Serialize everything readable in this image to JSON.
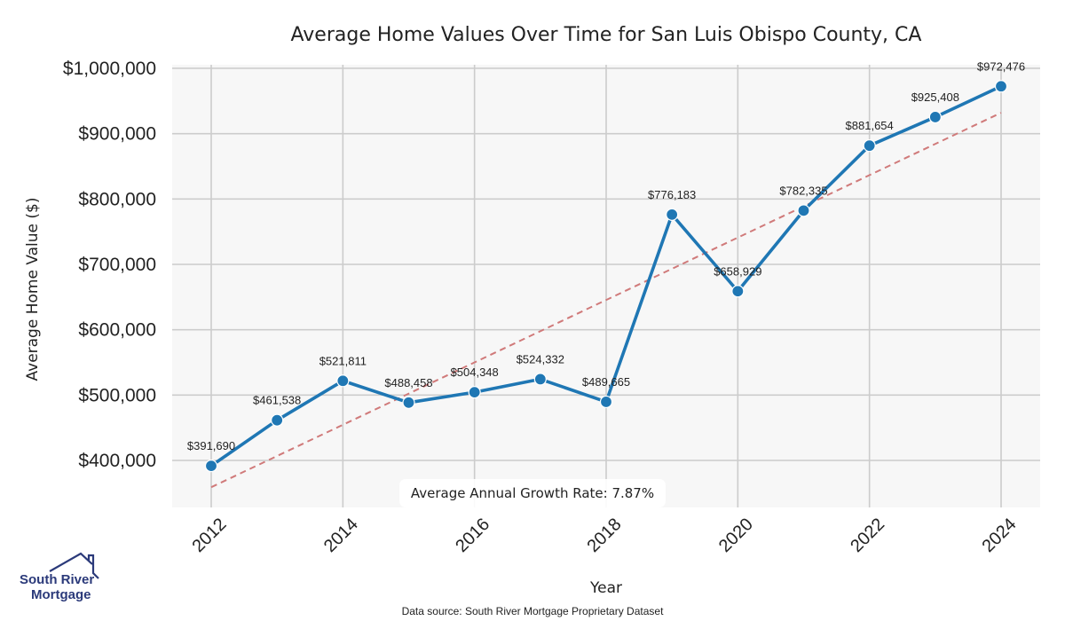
{
  "chart_data": {
    "type": "line",
    "title": "Average Home Values Over Time for San Luis Obispo County, CA",
    "xlabel": "Year",
    "ylabel": "Average Home Value ($)",
    "x": [
      2012,
      2013,
      2014,
      2015,
      2016,
      2017,
      2018,
      2019,
      2020,
      2021,
      2022,
      2023,
      2024
    ],
    "series": [
      {
        "name": "Average Home Value",
        "values": [
          391690,
          461538,
          521811,
          488458,
          504348,
          524332,
          489665,
          776183,
          658929,
          782335,
          881654,
          925408,
          972476
        ],
        "labels": [
          "$391,690",
          "$461,538",
          "$521,811",
          "$488,458",
          "$504,348",
          "$524,332",
          "$489,665",
          "$776,183",
          "$658,929",
          "$782,335",
          "$881,654",
          "$925,408",
          "$972,476"
        ],
        "color": "#1f77b4"
      },
      {
        "name": "Trend",
        "style": "dashed",
        "x": [
          2012,
          2024
        ],
        "values": [
          359000,
          932000
        ],
        "color": "#d07a7a"
      }
    ],
    "xticks": [
      2012,
      2014,
      2016,
      2018,
      2020,
      2022,
      2024
    ],
    "xtick_labels": [
      "2012",
      "2014",
      "2016",
      "2018",
      "2020",
      "2022",
      "2024"
    ],
    "yticks": [
      400000,
      500000,
      600000,
      700000,
      800000,
      900000,
      1000000
    ],
    "ytick_labels": [
      "$400,000",
      "$500,000",
      "$600,000",
      "$700,000",
      "$800,000",
      "$900,000",
      "$1,000,000"
    ],
    "xlim": [
      2011.4,
      2024.6
    ],
    "ylim": [
      327000,
      1005000
    ],
    "grid": true,
    "annotation": "Average Annual Growth Rate: 7.87%"
  },
  "footer": {
    "source": "Data source: South River Mortgage Proprietary Dataset"
  },
  "logo": {
    "line1": "South River",
    "line2": "Mortgage",
    "color": "#2b3a7a"
  }
}
